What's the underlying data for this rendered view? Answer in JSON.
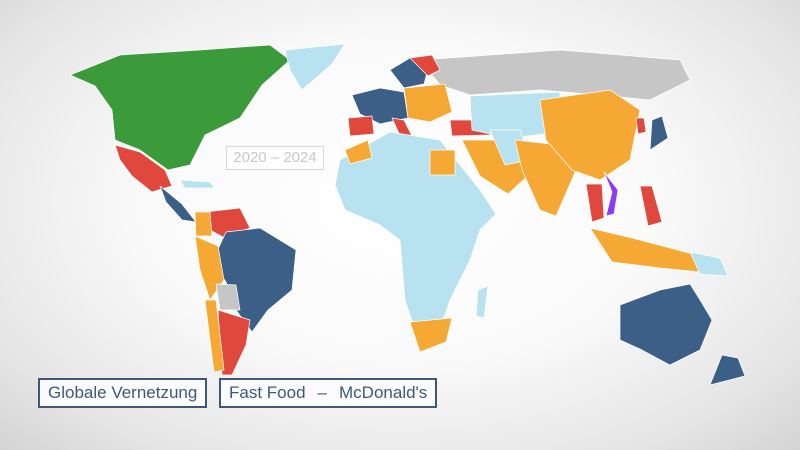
{
  "period": "2020 – 2024",
  "labels": {
    "topic": "Globale Vernetzung",
    "subject": "Fast Food",
    "separator": "–",
    "brand": "McDonald's"
  },
  "colors": {
    "green": "#3b9a3a",
    "light_blue": "#b8e2ef",
    "gray": "#c6c6c6",
    "orange": "#f5a833",
    "red": "#e0473d",
    "dark_blue": "#3b5f86",
    "purple": "#8b3cf0"
  }
}
